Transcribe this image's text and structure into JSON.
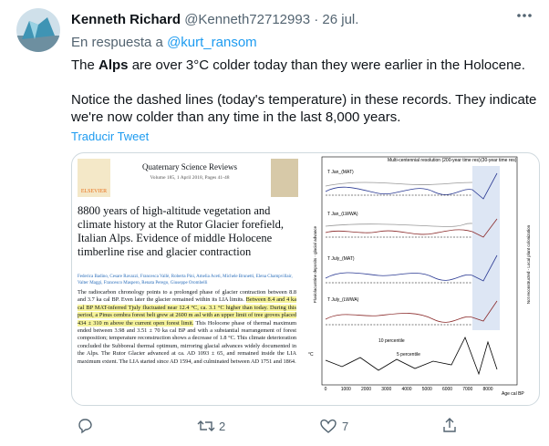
{
  "tweet": {
    "author": {
      "name": "Kenneth Richard",
      "handle": "@Kenneth72712993",
      "separator": "·",
      "date": "26 jul."
    },
    "reply_to": {
      "prefix": "En respuesta a",
      "mention": "@kurt_ransom"
    },
    "paragraphs": [
      [
        "The ",
        "Alps",
        " are over 3°C colder today than they were earlier in the Holocene."
      ],
      [
        "Notice the dashed lines (today's temperature) in these records. They indicate we're now colder than any time in the last 8,000 years."
      ]
    ],
    "translate": "Traducir Tweet",
    "image": {
      "paper": {
        "publisher": "ELSEVIER",
        "journal": "Quaternary Science Reviews",
        "volume": "Volume 185, 1 April 2018, Pages 41-48",
        "title": "8800 years of high-altitude vegetation and climate history at the Rutor Glacier forefield, Italian Alps. Evidence of middle Holocene timberline rise and glacier contraction",
        "authors": "Federica Badino, Cesare Ravazzi, Francesca Vallè, Roberta Pini, Amelia Aceti, Michele Brunetti, Elena Champvillair, Valter Maggi, Francesco Maspero, Renata Perego, Giuseppe Orombelli",
        "abstract": [
          "The radiocarbon chronology points to a prolonged phase of glacier contraction between 8.8 and 3.7 ka cal BP. Even later the glacier remained within its LIA limits. ",
          "Between 8.4 and 4 ka cal BP MAT-inferred Tjuly fluctuated near 12.4 °C, ca. 3.1 °C higher than today. During this period, a Pinus cembra forest belt grew at 2600 m asl with an upper limit of tree groves placed 434 ± 310 m above the current open forest limit.",
          " This Holocene phase of thermal maximum ended between 3.98 and 3.51 ± 70 ka cal BP and with a substantial rearrangement of forest composition; temperature reconstruction shows a decrease of 1.8 °C. This climate deterioration concluded the Subboreal thermal optimum, mirroring glacial advances widely documented in the Alps. The Rutor Glacier advanced at ca. AD 1093 ± 65, and remained inside the LIA maximum extent. The LIA started since AD 1594, and culminated between AD 1751 and 1864."
        ]
      },
      "figure": {
        "header_left": "Multi-centennial resolution (200-year time res)",
        "header_right": "(30-year time res)",
        "left_axis": "Fluviolacustrine deposits - glacial advance",
        "right_axis": "Not reconstructed - Local plant colonization",
        "unit": "°C",
        "panels": [
          "T Jan_(MAT)",
          "T Jan_(LWWA)",
          "T July_(MAT)",
          "T July_(LWWA)"
        ],
        "percentiles": [
          "10 percentile",
          "5 percentile"
        ],
        "xticks": [
          "0",
          "1000",
          "2000",
          "3000",
          "4000",
          "5000",
          "6000",
          "7000",
          "8000"
        ],
        "xlabel": "Age cal BP"
      }
    },
    "actions": {
      "retweets": "2",
      "likes": "7"
    }
  }
}
